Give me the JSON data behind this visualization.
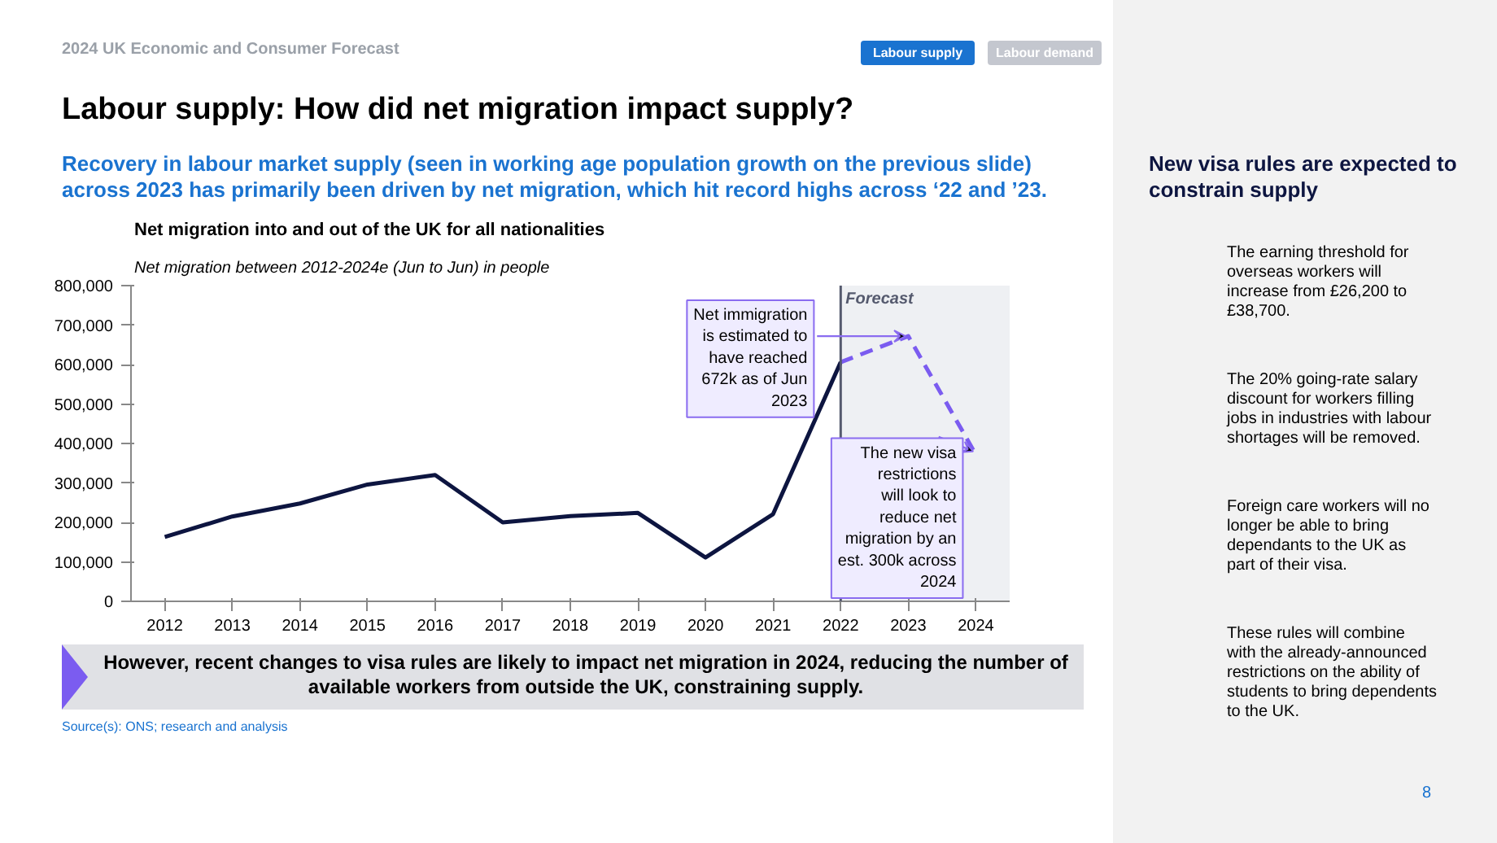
{
  "chart_data": {
    "type": "line",
    "title": "Net migration into and out of the UK for all nationalities",
    "subtitle": "Net migration between 2012-2024e (Jun to Jun) in people",
    "series": [
      {
        "color": "#0d1540",
        "line_style": "solid",
        "x": [
          2012,
          2013,
          2014,
          2015,
          2016,
          2017,
          2018,
          2019,
          2020,
          2021,
          2022
        ],
        "values": [
          163000,
          215000,
          248000,
          296000,
          320000,
          200000,
          216000,
          224000,
          111000,
          221000,
          606000
        ]
      },
      {
        "color": "#7b5cf0",
        "line_style": "dashed",
        "x": [
          2022,
          2023,
          2024
        ],
        "values": [
          606000,
          672000,
          372000
        ]
      }
    ],
    "xlim": [
      2011.5,
      2024.5
    ],
    "xticks": [
      2012,
      2013,
      2014,
      2015,
      2016,
      2017,
      2018,
      2019,
      2020,
      2021,
      2022,
      2023,
      2024
    ],
    "ylim": [
      0,
      800000
    ],
    "yticks": [
      0,
      {
        "value": 100000,
        "label": "100,000"
      },
      {
        "value": 200000,
        "label": "200,000"
      },
      {
        "value": 300000,
        "label": "300,000"
      },
      {
        "value": 400000,
        "label": "400,000"
      },
      {
        "value": 500000,
        "label": "500,000"
      },
      {
        "value": 600000,
        "label": "600,000"
      },
      {
        "value": 700000,
        "label": "700,000"
      },
      {
        "value": 800000,
        "label": "800,000"
      }
    ],
    "grid": false,
    "marker": "none",
    "ref_lines": [
      {
        "axis": "x",
        "value": 2022,
        "color": "#555a6e"
      }
    ],
    "bands": [
      {
        "axis": "x",
        "from": 2022,
        "to": 2024.5,
        "label": "Forecast",
        "color": "#eef0f3"
      }
    ],
    "annotations": [
      "2024 UK Economic and Consumer Forecast",
      "Labour supply",
      "Labour demand",
      "Labour supply: How did net migration impact supply?",
      "Recovery in labour market supply (seen in working age population growth on the previous slide) across 2023 has primarily been driven by net migration, which hit record highs across ‘22 and ’23.",
      {
        "text": "Net immigration is estimated to have reached 672k as of Jun 2023",
        "x": 2023,
        "y": 672000
      },
      {
        "text": "The new visa restrictions will look to reduce net migration by an est. 300k across 2024",
        "x": 2024,
        "y": 372000
      },
      "However, recent changes to visa rules are likely to impact net migration in 2024, reducing the number of available workers from outside the UK, constraining supply.",
      "Source(s): ONS; research and analysis",
      "New visa rules are expected to constrain supply",
      "The earning threshold for overseas workers will increase from £26,200 to £38,700.",
      "The 20% going-rate salary discount for workers filling jobs in industries with labour shortages will be removed.",
      "Foreign care workers will no longer be able to bring dependants to the UK as part of their visa.",
      "These rules will combine with the already-announced restrictions on the ability of students to bring dependents to the UK.",
      "8"
    ]
  }
}
